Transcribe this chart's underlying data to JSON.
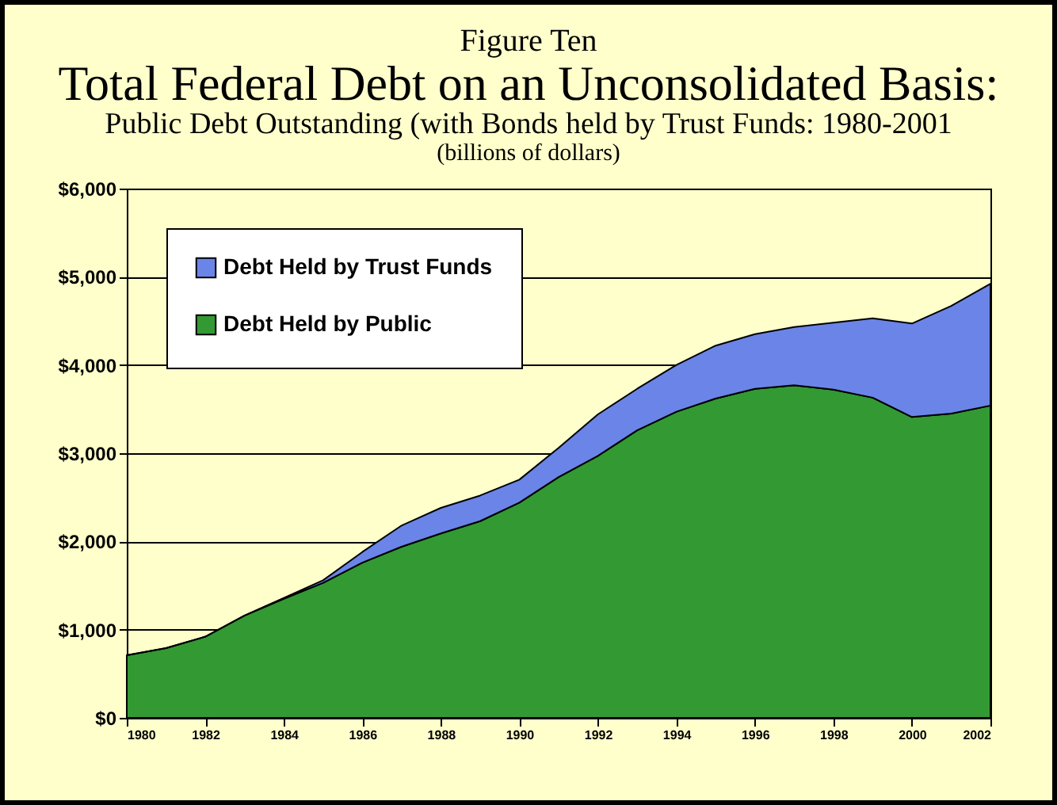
{
  "chart_data": {
    "type": "area",
    "stacked": true,
    "title": "Total Federal Debt on an Unconsolidated Basis:",
    "subtitle": "Public Debt Outstanding (with Bonds held by Trust Funds: 1980-2001",
    "annotations": [
      "Figure Ten",
      "(billions of dollars)"
    ],
    "x": [
      1980,
      1981,
      1982,
      1983,
      1984,
      1985,
      1986,
      1987,
      1988,
      1989,
      1990,
      1991,
      1992,
      1993,
      1994,
      1995,
      1996,
      1997,
      1998,
      1999,
      2000,
      2001,
      2002
    ],
    "series": [
      {
        "name": "Debt Held by Public",
        "color": "#339933",
        "values": [
          710,
          790,
          920,
          1160,
          1350,
          1530,
          1760,
          1940,
          2090,
          2230,
          2440,
          2730,
          2970,
          3260,
          3470,
          3620,
          3730,
          3770,
          3720,
          3630,
          3410,
          3450,
          3540
        ]
      },
      {
        "name": "Debt Held by Trust Funds",
        "color": "#6b84e8",
        "values": [
          0,
          0,
          0,
          0,
          10,
          30,
          120,
          240,
          290,
          290,
          260,
          330,
          470,
          470,
          530,
          600,
          620,
          660,
          760,
          900,
          1060,
          1220,
          1380
        ]
      }
    ],
    "xlim": [
      1980,
      2002
    ],
    "xticks": [
      1980,
      1982,
      1984,
      1986,
      1988,
      1990,
      1992,
      1994,
      1996,
      1998,
      2000,
      2002
    ],
    "ylim": [
      0,
      6000
    ],
    "yticks": [
      {
        "value": 0,
        "label": "$0"
      },
      {
        "value": 1000,
        "label": "$1,000"
      },
      {
        "value": 2000,
        "label": "$2,000"
      },
      {
        "value": 3000,
        "label": "$3,000"
      },
      {
        "value": 4000,
        "label": "$4,000"
      },
      {
        "value": 5000,
        "label": "$5,000"
      },
      {
        "value": 6000,
        "label": "$6,000"
      }
    ],
    "grid": "y",
    "legend": "top left"
  }
}
